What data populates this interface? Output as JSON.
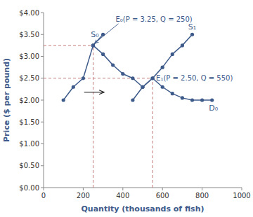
{
  "chart_data": {
    "type": "line",
    "xlabel": "Quantity (thousands of fish)",
    "ylabel": "Price ($ per pound)",
    "xlim": [
      0,
      1000
    ],
    "ylim": [
      0,
      4.0
    ],
    "xticks": [
      0,
      200,
      400,
      600,
      800,
      1000
    ],
    "yticks": [
      {
        "value": 0.0,
        "label": "$0.00"
      },
      {
        "value": 0.5,
        "label": "$0.50"
      },
      {
        "value": 1.0,
        "label": "$1.00"
      },
      {
        "value": 1.5,
        "label": "$1.50"
      },
      {
        "value": 2.0,
        "label": "$2.00"
      },
      {
        "value": 2.5,
        "label": "$2.50"
      },
      {
        "value": 3.0,
        "label": "$3.00"
      },
      {
        "value": 3.5,
        "label": "$3.50"
      },
      {
        "value": 4.0,
        "label": "$4.00"
      }
    ],
    "grid": false,
    "marker": "circle",
    "series": [
      {
        "name": "S₀",
        "color": "#3d5a8a",
        "x": [
          100,
          150,
          200,
          250,
          300
        ],
        "values": [
          2.0,
          2.3,
          2.5,
          3.25,
          3.5
        ]
      },
      {
        "name": "D₀",
        "color": "#3d5a8a",
        "x": [
          250,
          300,
          350,
          400,
          450,
          500,
          550,
          600,
          650,
          700,
          750,
          800,
          850
        ],
        "values": [
          3.25,
          3.05,
          2.8,
          2.6,
          2.5,
          2.3,
          2.5,
          2.3,
          2.15,
          2.05,
          2.0,
          2.0,
          2.0
        ]
      },
      {
        "name": "S₁",
        "color": "#3d5a8a",
        "x": [
          450,
          500,
          550,
          600,
          650,
          700,
          750
        ],
        "values": [
          2.0,
          2.3,
          2.5,
          2.75,
          3.05,
          3.25,
          3.5
        ]
      }
    ],
    "annotations": [
      {
        "text": "E₀(P = 3.25, Q = 250)",
        "x": 250,
        "y": 3.25,
        "color": "#c47a7a",
        "line_style": "dashed"
      },
      {
        "text": "E₁(P = 2.50, Q = 550)",
        "x": 550,
        "y": 2.5,
        "color": "#c47a7a",
        "line_style": "dashed"
      }
    ],
    "shift_arrow": {
      "x": [
        205,
        305
      ],
      "y": [
        2.18,
        2.18
      ]
    }
  }
}
